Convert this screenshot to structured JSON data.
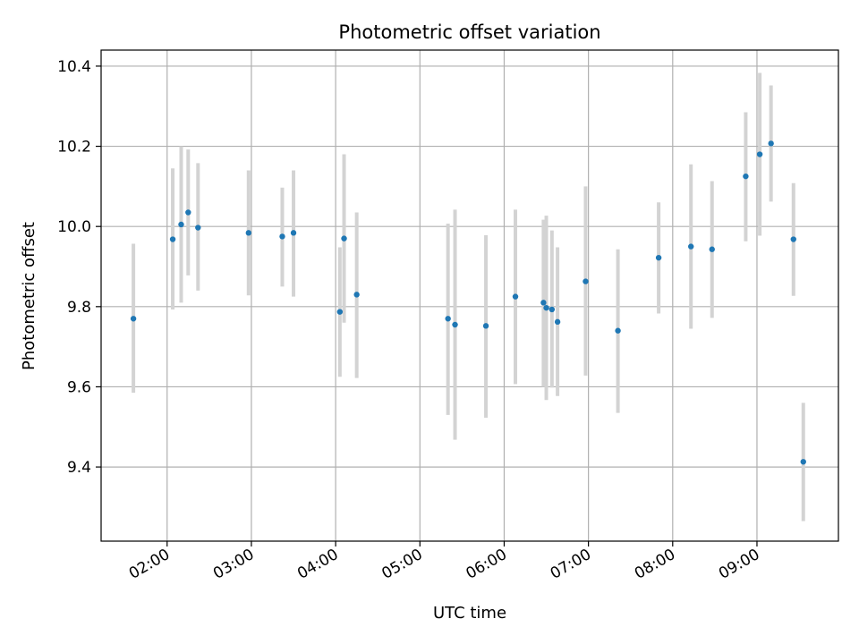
{
  "chart_data": {
    "type": "scatter",
    "title": "Photometric offset variation",
    "xlabel": "UTC time",
    "ylabel": "Photometric offset",
    "xlim": [
      "01:13",
      "09:58"
    ],
    "ylim": [
      9.215,
      10.44
    ],
    "x_ticks": [
      "02:00",
      "03:00",
      "04:00",
      "05:00",
      "06:00",
      "07:00",
      "08:00",
      "09:00"
    ],
    "y_ticks": [
      9.4,
      9.6,
      9.8,
      10.0,
      10.2,
      10.4
    ],
    "y_tick_labels": [
      "9.4",
      "9.6",
      "9.8",
      "10.0",
      "10.2",
      "10.4"
    ],
    "grid": true,
    "colors": {
      "point": "#1f77b4",
      "errorbar": "#d3d3d3",
      "grid": "#b0b0b0"
    },
    "series": [
      {
        "points": [
          {
            "x": "01:36",
            "y": 9.77,
            "ylo": 9.585,
            "yhi": 9.957
          },
          {
            "x": "02:04",
            "y": 9.968,
            "ylo": 9.793,
            "yhi": 10.145
          },
          {
            "x": "02:10",
            "y": 10.005,
            "ylo": 9.81,
            "yhi": 10.2
          },
          {
            "x": "02:15",
            "y": 10.035,
            "ylo": 9.878,
            "yhi": 10.192
          },
          {
            "x": "02:22",
            "y": 9.997,
            "ylo": 9.84,
            "yhi": 10.158
          },
          {
            "x": "02:58",
            "y": 9.984,
            "ylo": 9.828,
            "yhi": 10.14
          },
          {
            "x": "03:22",
            "y": 9.975,
            "ylo": 9.85,
            "yhi": 10.097
          },
          {
            "x": "03:30",
            "y": 9.984,
            "ylo": 9.825,
            "yhi": 10.14
          },
          {
            "x": "04:03",
            "y": 9.787,
            "ylo": 9.625,
            "yhi": 9.948
          },
          {
            "x": "04:06",
            "y": 9.97,
            "ylo": 9.76,
            "yhi": 10.18
          },
          {
            "x": "04:15",
            "y": 9.83,
            "ylo": 9.622,
            "yhi": 10.035
          },
          {
            "x": "05:20",
            "y": 9.77,
            "ylo": 9.53,
            "yhi": 10.007
          },
          {
            "x": "05:25",
            "y": 9.755,
            "ylo": 9.468,
            "yhi": 10.042
          },
          {
            "x": "05:47",
            "y": 9.752,
            "ylo": 9.523,
            "yhi": 9.978
          },
          {
            "x": "06:08",
            "y": 9.825,
            "ylo": 9.607,
            "yhi": 10.042
          },
          {
            "x": "06:28",
            "y": 9.81,
            "ylo": 9.6,
            "yhi": 10.017
          },
          {
            "x": "06:30",
            "y": 9.797,
            "ylo": 9.567,
            "yhi": 10.027
          },
          {
            "x": "06:34",
            "y": 9.793,
            "ylo": 9.598,
            "yhi": 9.99
          },
          {
            "x": "06:38",
            "y": 9.762,
            "ylo": 9.577,
            "yhi": 9.948
          },
          {
            "x": "06:58",
            "y": 9.863,
            "ylo": 9.628,
            "yhi": 10.1
          },
          {
            "x": "07:21",
            "y": 9.74,
            "ylo": 9.535,
            "yhi": 9.943
          },
          {
            "x": "07:50",
            "y": 9.922,
            "ylo": 9.783,
            "yhi": 10.06
          },
          {
            "x": "08:13",
            "y": 9.95,
            "ylo": 9.745,
            "yhi": 10.155
          },
          {
            "x": "08:28",
            "y": 9.943,
            "ylo": 9.772,
            "yhi": 10.113
          },
          {
            "x": "08:52",
            "y": 10.125,
            "ylo": 9.963,
            "yhi": 10.285
          },
          {
            "x": "09:02",
            "y": 10.18,
            "ylo": 9.977,
            "yhi": 10.383
          },
          {
            "x": "09:10",
            "y": 10.207,
            "ylo": 10.062,
            "yhi": 10.352
          },
          {
            "x": "09:26",
            "y": 9.968,
            "ylo": 9.827,
            "yhi": 10.108
          },
          {
            "x": "09:33",
            "y": 9.413,
            "ylo": 9.265,
            "yhi": 9.56
          }
        ]
      }
    ]
  }
}
